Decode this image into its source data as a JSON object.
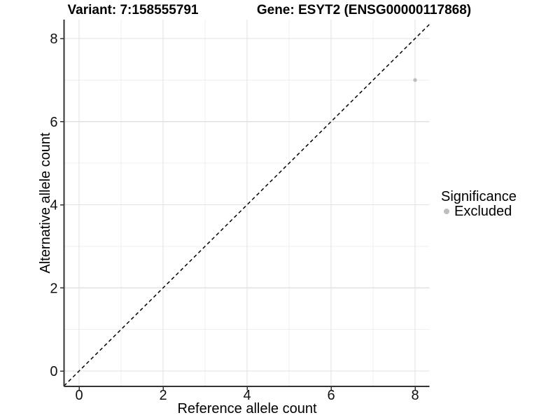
{
  "header": {
    "variant_title": "Variant: 7:158555791",
    "gene_title": "Gene: ESYT2 (ENSG00000117868)"
  },
  "chart_data": {
    "type": "scatter",
    "titles": [
      "Variant: 7:158555791",
      "Gene: ESYT2 (ENSG00000117868)"
    ],
    "xlabel": "Reference allele count",
    "ylabel": "Alternative allele count",
    "xlim": [
      -0.36,
      8.34
    ],
    "ylim": [
      -0.37,
      8.45
    ],
    "x_ticks": [
      0,
      2,
      4,
      6,
      8
    ],
    "y_ticks": [
      0,
      2,
      4,
      6,
      8
    ],
    "x_minor": [
      1,
      3,
      5,
      7
    ],
    "y_minor": [
      1,
      3,
      5,
      7
    ],
    "grid": "on",
    "series": [
      {
        "name": "Excluded",
        "color": "#bebebe",
        "points": [
          {
            "x": 8,
            "y": 7
          }
        ]
      }
    ],
    "reference_line": {
      "style": "dashed",
      "slope": 1,
      "intercept": 0,
      "color": "#000000"
    },
    "legend": {
      "title": "Significance",
      "position": "right",
      "items": [
        {
          "label": "Excluded",
          "color": "#bebebe"
        }
      ]
    }
  },
  "colors": {
    "background": "#ffffff",
    "grid_major": "#e2e2e2",
    "grid_minor": "#efefef",
    "axis_line": "#333333",
    "tick_mark": "#333333",
    "text": "#000000",
    "point": "#bebebe"
  }
}
